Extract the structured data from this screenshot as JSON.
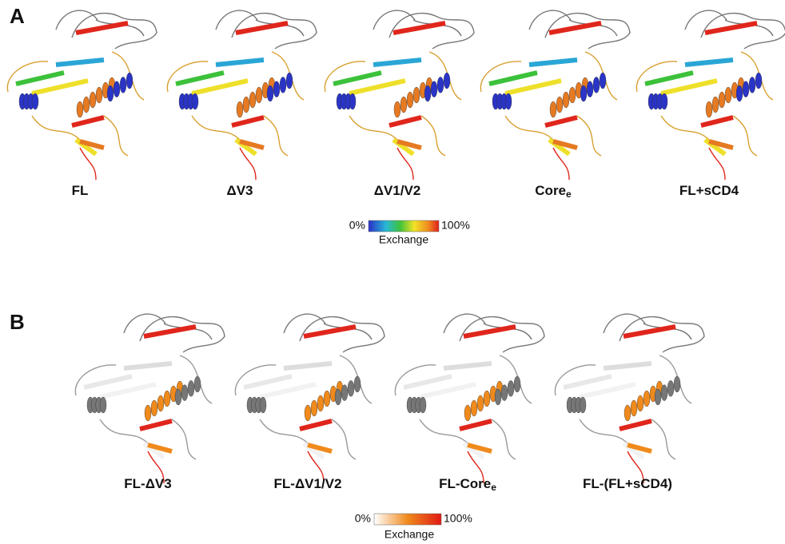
{
  "panel_a": {
    "label": "A",
    "structures": [
      {
        "name": "FL"
      },
      {
        "name": "ΔV3"
      },
      {
        "name": "ΔV1/V2"
      },
      {
        "name": "Core",
        "subscript": "e"
      },
      {
        "name": "FL+sCD4"
      }
    ],
    "colorbar": {
      "min_label": "0%",
      "max_label": "100%",
      "title": "Exchange"
    }
  },
  "panel_b": {
    "label": "B",
    "structures": [
      {
        "name": "FL-ΔV3"
      },
      {
        "name": "FL-ΔV1/V2"
      },
      {
        "name": "FL-Core",
        "subscript": "e"
      },
      {
        "name": "FL-(FL+sCD4)"
      }
    ],
    "colorbar": {
      "min_label": "0%",
      "max_label": "100%",
      "title": "Exchange"
    }
  }
}
